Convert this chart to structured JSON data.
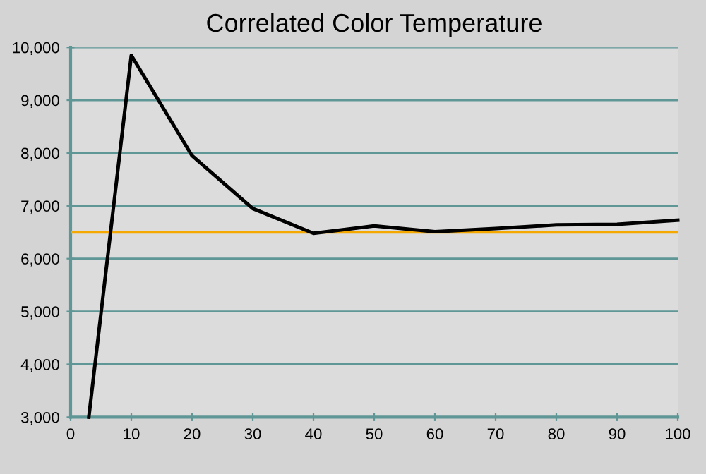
{
  "chart_data": {
    "type": "line",
    "title": "Correlated Color Temperature",
    "series": [
      {
        "color": "#000000",
        "x": [
          3,
          10,
          20,
          30,
          40,
          50,
          60,
          70,
          80,
          90,
          100
        ],
        "values": [
          3000,
          9850,
          7950,
          6950,
          6480,
          6620,
          6510,
          6570,
          6640,
          6650,
          6730
        ]
      }
    ],
    "ref_lines": [
      {
        "axis": "y",
        "value": 6500,
        "label": null,
        "color": "#f5a800"
      }
    ],
    "xlim": [
      0,
      100
    ],
    "xticks": [
      0,
      10,
      20,
      30,
      40,
      50,
      60,
      70,
      80,
      90,
      100
    ],
    "ylim": [
      3000,
      10000
    ],
    "yticks": [
      {
        "value": 3000,
        "label": "3,000"
      },
      {
        "value": 4000,
        "label": "4,000"
      },
      {
        "value": 5000,
        "label": "5,000"
      },
      {
        "value": 6000,
        "label": "6,000"
      },
      {
        "value": 7000,
        "label": "7,000"
      },
      {
        "value": 8000,
        "label": "8,000"
      },
      {
        "value": 9000,
        "label": "9,000"
      },
      {
        "value": 10000,
        "label": "10,000"
      }
    ],
    "grid": "y",
    "marker": "none",
    "line_style": "solid",
    "legend": false
  }
}
